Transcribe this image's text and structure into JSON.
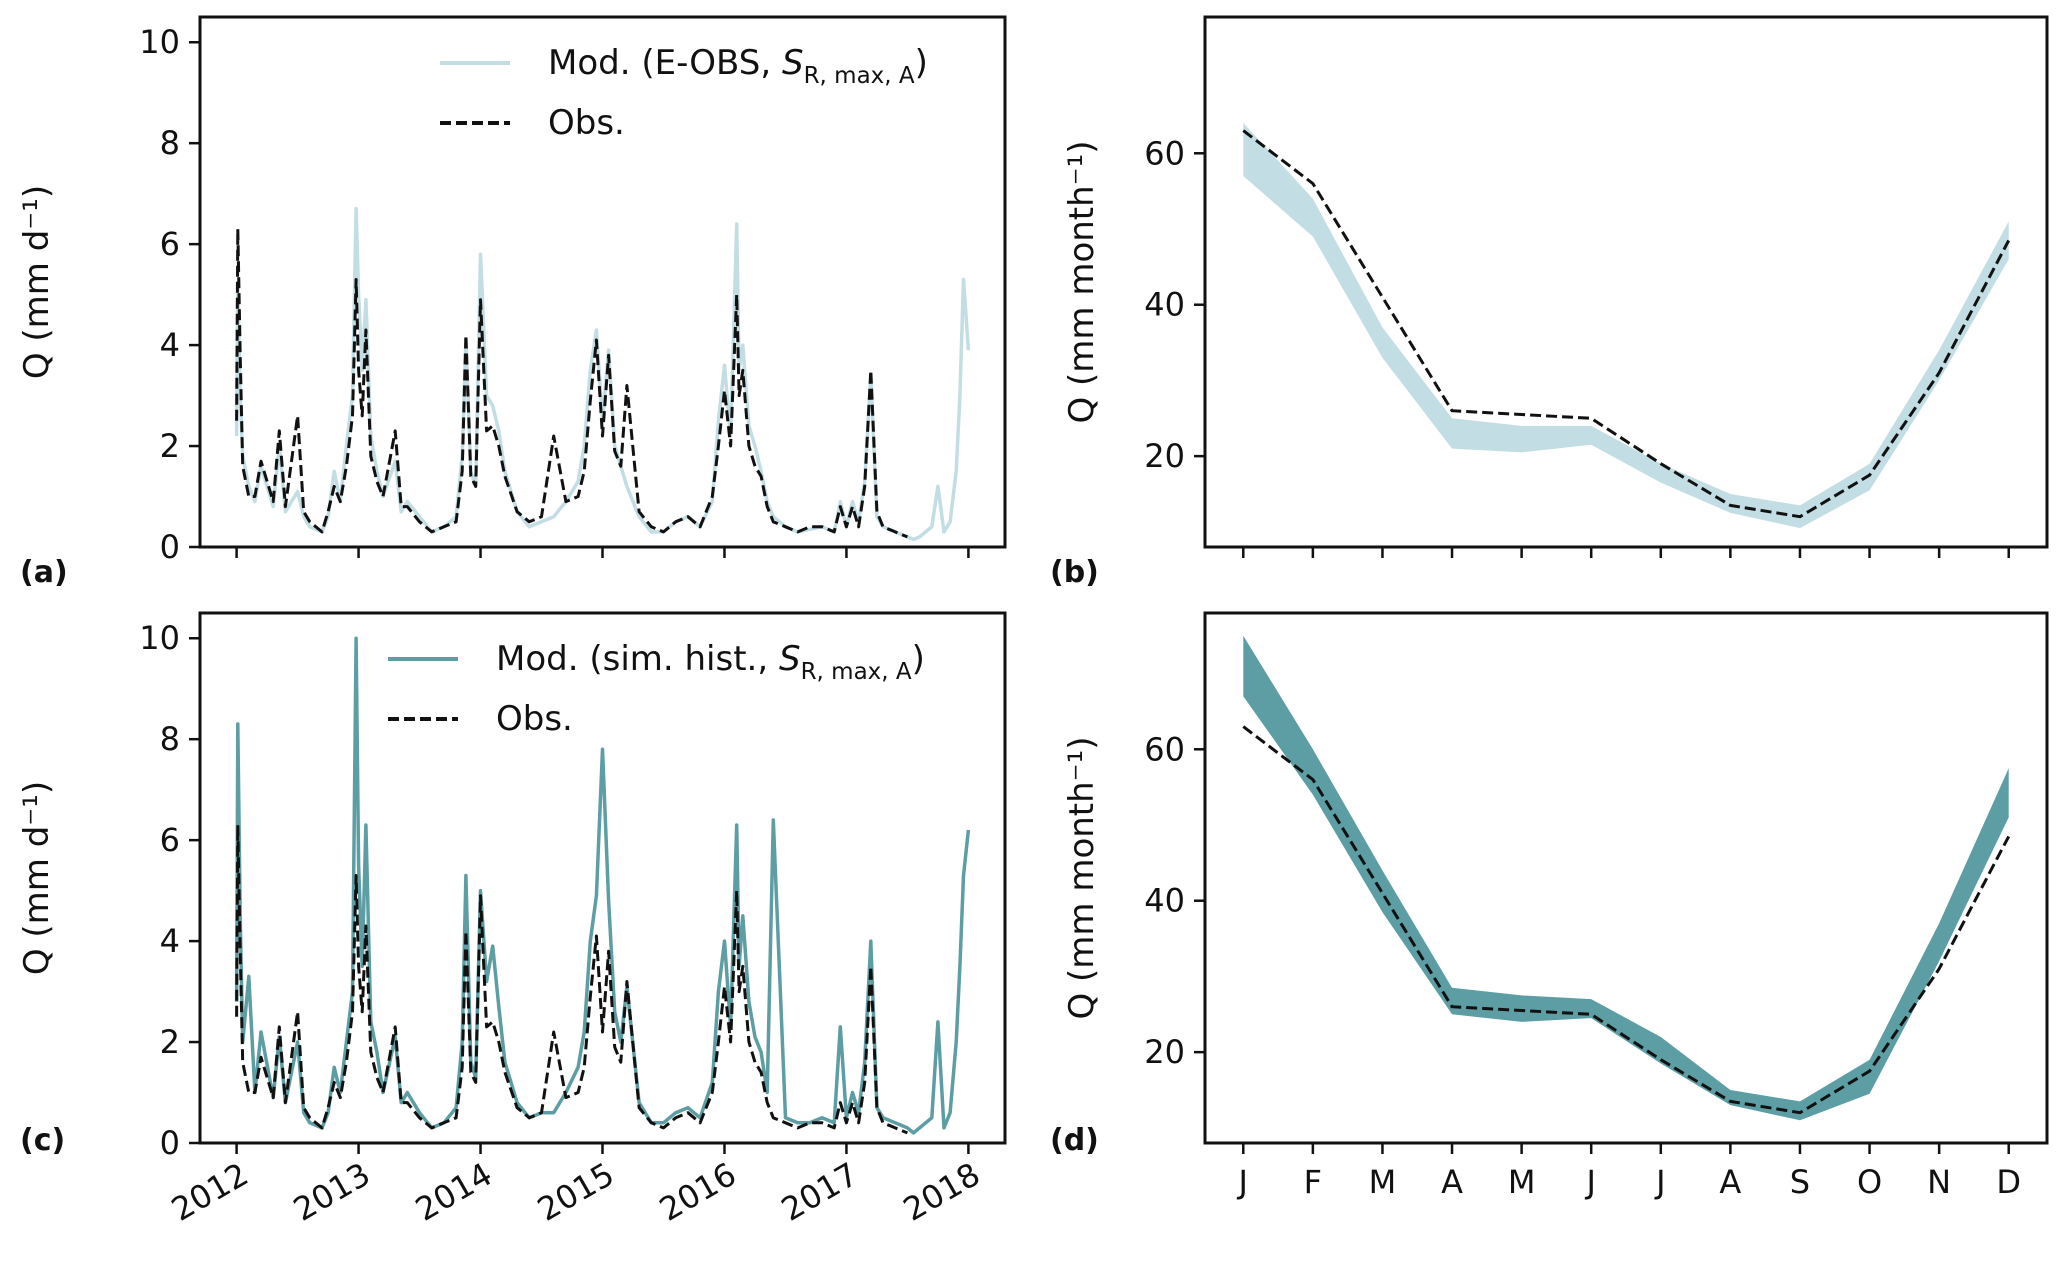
{
  "chart_data": [
    {
      "id": "a",
      "panel_label": "(a)",
      "type": "line",
      "ylabel": "Q (mm d⁻¹)",
      "ylim": [
        0,
        10.5
      ],
      "yticks": [
        "0",
        "2",
        "4",
        "6",
        "8",
        "10"
      ],
      "xlim": [
        2012,
        2018
      ],
      "xticks": [
        "2012",
        "2013",
        "2014",
        "2015",
        "2016",
        "2017",
        "2018"
      ],
      "show_xtick_labels": false,
      "legend": {
        "position": "top-right",
        "entries": [
          {
            "label_main": "Mod. (E-OBS, ",
            "label_italic": "S",
            "label_sub": "R, max, A",
            "label_end": ")",
            "style": "solid",
            "color": "#c2dde3"
          },
          {
            "label_main": "Obs.",
            "style": "dashed",
            "color": "#111111"
          }
        ]
      },
      "series": [
        {
          "name": "Mod. (E-OBS, S_R,max,A)",
          "color": "#c2dde3",
          "style": "solid",
          "x": [
            2012.0,
            2012.01,
            2012.03,
            2012.05,
            2012.1,
            2012.15,
            2012.2,
            2012.3,
            2012.35,
            2012.4,
            2012.5,
            2012.55,
            2012.6,
            2012.7,
            2012.75,
            2012.8,
            2012.85,
            2012.9,
            2012.95,
            2012.98,
            2013.0,
            2013.03,
            2013.06,
            2013.1,
            2013.15,
            2013.2,
            2013.3,
            2013.35,
            2013.4,
            2013.5,
            2013.6,
            2013.7,
            2013.8,
            2013.85,
            2013.88,
            2013.92,
            2013.96,
            2014.0,
            2014.05,
            2014.1,
            2014.15,
            2014.2,
            2014.3,
            2014.4,
            2014.5,
            2014.6,
            2014.7,
            2014.8,
            2014.85,
            2014.9,
            2014.95,
            2015.0,
            2015.05,
            2015.1,
            2015.15,
            2015.2,
            2015.3,
            2015.4,
            2015.5,
            2015.6,
            2015.7,
            2015.8,
            2015.9,
            2015.95,
            2016.0,
            2016.05,
            2016.1,
            2016.12,
            2016.15,
            2016.2,
            2016.25,
            2016.3,
            2016.35,
            2016.4,
            2016.5,
            2016.6,
            2016.7,
            2016.8,
            2016.9,
            2016.95,
            2017.0,
            2017.05,
            2017.1,
            2017.15,
            2017.2,
            2017.25,
            2017.3,
            2017.4,
            2017.5,
            2017.55,
            2017.6,
            2017.65,
            2017.7,
            2017.75,
            2017.8,
            2017.85,
            2017.9,
            2017.93,
            2017.96,
            2018.0
          ],
          "y": [
            2.2,
            5.2,
            3.0,
            1.8,
            1.2,
            0.9,
            1.6,
            0.8,
            2.0,
            0.7,
            1.1,
            0.6,
            0.4,
            0.3,
            0.6,
            1.5,
            0.9,
            2.0,
            3.0,
            6.7,
            5.0,
            3.5,
            4.9,
            2.2,
            1.5,
            1.0,
            1.7,
            0.7,
            0.9,
            0.6,
            0.3,
            0.4,
            0.6,
            1.8,
            4.1,
            1.5,
            1.2,
            5.8,
            3.0,
            2.8,
            2.3,
            1.5,
            0.7,
            0.4,
            0.5,
            0.6,
            0.9,
            1.3,
            2.0,
            3.5,
            4.3,
            2.5,
            3.9,
            2.0,
            1.6,
            1.2,
            0.6,
            0.3,
            0.3,
            0.5,
            0.6,
            0.4,
            0.9,
            2.5,
            3.6,
            2.2,
            6.4,
            3.5,
            4.0,
            2.4,
            2.0,
            1.5,
            0.9,
            0.6,
            0.4,
            0.3,
            0.35,
            0.4,
            0.3,
            0.9,
            0.4,
            0.9,
            0.5,
            1.3,
            3.4,
            0.6,
            0.4,
            0.3,
            0.2,
            0.15,
            0.2,
            0.3,
            0.4,
            1.2,
            0.3,
            0.5,
            1.5,
            3.0,
            5.3,
            3.9
          ]
        },
        {
          "name": "Obs.",
          "color": "#111111",
          "style": "dashed",
          "x": [
            2012.0,
            2012.01,
            2012.03,
            2012.05,
            2012.1,
            2012.15,
            2012.2,
            2012.3,
            2012.35,
            2012.4,
            2012.5,
            2012.55,
            2012.6,
            2012.7,
            2012.75,
            2012.8,
            2012.85,
            2012.9,
            2012.95,
            2012.98,
            2013.0,
            2013.03,
            2013.06,
            2013.1,
            2013.15,
            2013.2,
            2013.3,
            2013.35,
            2013.4,
            2013.5,
            2013.6,
            2013.7,
            2013.8,
            2013.85,
            2013.88,
            2013.92,
            2013.96,
            2014.0,
            2014.05,
            2014.1,
            2014.15,
            2014.2,
            2014.3,
            2014.4,
            2014.5,
            2014.6,
            2014.7,
            2014.8,
            2014.85,
            2014.9,
            2014.95,
            2015.0,
            2015.05,
            2015.1,
            2015.15,
            2015.2,
            2015.3,
            2015.4,
            2015.5,
            2015.6,
            2015.7,
            2015.8,
            2015.9,
            2015.95,
            2016.0,
            2016.05,
            2016.1,
            2016.12,
            2016.15,
            2016.2,
            2016.25,
            2016.3,
            2016.35,
            2016.4,
            2016.5,
            2016.6,
            2016.7,
            2016.8,
            2016.9,
            2016.95,
            2017.0,
            2017.05,
            2017.1,
            2017.15,
            2017.2,
            2017.25,
            2017.3,
            2017.4,
            2017.5
          ],
          "y": [
            2.5,
            6.3,
            3.8,
            1.6,
            1.0,
            1.0,
            1.7,
            0.9,
            2.3,
            0.8,
            2.6,
            0.7,
            0.5,
            0.3,
            0.7,
            1.2,
            0.9,
            1.6,
            2.6,
            5.3,
            3.5,
            2.6,
            4.3,
            1.8,
            1.3,
            1.0,
            2.3,
            0.8,
            0.8,
            0.5,
            0.3,
            0.4,
            0.5,
            1.5,
            4.2,
            1.4,
            1.2,
            4.9,
            2.3,
            2.4,
            2.0,
            1.4,
            0.7,
            0.5,
            0.6,
            2.2,
            0.9,
            1.0,
            1.5,
            2.9,
            4.1,
            2.2,
            3.8,
            1.9,
            1.6,
            3.2,
            0.7,
            0.4,
            0.3,
            0.5,
            0.6,
            0.4,
            1.0,
            2.0,
            3.1,
            2.0,
            5.0,
            3.0,
            3.5,
            2.0,
            1.6,
            1.4,
            0.8,
            0.5,
            0.4,
            0.3,
            0.4,
            0.4,
            0.3,
            0.8,
            0.4,
            0.8,
            0.4,
            1.2,
            3.5,
            0.7,
            0.4,
            0.3,
            0.2
          ]
        }
      ]
    },
    {
      "id": "b",
      "panel_label": "(b)",
      "type": "area",
      "ylabel": "Q (mm month⁻¹)",
      "ylim": [
        8,
        78
      ],
      "yticks": [
        "20",
        "40",
        "60"
      ],
      "categories": [
        "J",
        "F",
        "M",
        "A",
        "M",
        "J",
        "J",
        "A",
        "S",
        "O",
        "N",
        "D"
      ],
      "show_xtick_labels": false,
      "series": [
        {
          "name": "Mod. (E-OBS, S_R,max,A) range",
          "color": "#c2dde3",
          "style": "band",
          "lower": [
            57,
            49,
            33,
            21,
            20.5,
            21.5,
            16.5,
            12.5,
            10.5,
            15.5,
            30,
            46
          ],
          "upper": [
            64,
            54,
            37,
            25,
            24,
            24,
            19,
            15,
            13.5,
            19,
            34,
            51
          ]
        },
        {
          "name": "Obs.",
          "color": "#111111",
          "style": "dashed",
          "values": [
            63,
            56,
            41,
            26,
            25.5,
            25,
            19,
            13.5,
            12,
            17.5,
            31,
            48.5
          ]
        }
      ]
    },
    {
      "id": "c",
      "panel_label": "(c)",
      "type": "line",
      "ylabel": "Q (mm d⁻¹)",
      "ylim": [
        0,
        10.5
      ],
      "yticks": [
        "0",
        "2",
        "4",
        "6",
        "8",
        "10"
      ],
      "xlim": [
        2012,
        2018
      ],
      "xticks": [
        "2012",
        "2013",
        "2014",
        "2015",
        "2016",
        "2017",
        "2018"
      ],
      "show_xtick_labels": true,
      "legend": {
        "position": "top-right",
        "entries": [
          {
            "label_main": "Mod. (sim. hist., ",
            "label_italic": "S",
            "label_sub": "R, max, A",
            "label_end": ")",
            "style": "solid",
            "color": "#5d9ea4"
          },
          {
            "label_main": "Obs.",
            "style": "dashed",
            "color": "#111111"
          }
        ]
      },
      "series": [
        {
          "name": "Mod. (sim. hist., S_R,max,A)",
          "color": "#5d9ea4",
          "style": "solid",
          "x": [
            2012.0,
            2012.01,
            2012.03,
            2012.05,
            2012.1,
            2012.15,
            2012.2,
            2012.3,
            2012.35,
            2012.4,
            2012.5,
            2012.55,
            2012.6,
            2012.7,
            2012.75,
            2012.8,
            2012.85,
            2012.9,
            2012.95,
            2012.98,
            2013.0,
            2013.03,
            2013.06,
            2013.1,
            2013.15,
            2013.2,
            2013.3,
            2013.35,
            2013.4,
            2013.5,
            2013.6,
            2013.7,
            2013.8,
            2013.85,
            2013.88,
            2013.92,
            2013.96,
            2014.0,
            2014.05,
            2014.1,
            2014.15,
            2014.2,
            2014.3,
            2014.4,
            2014.5,
            2014.6,
            2014.7,
            2014.8,
            2014.85,
            2014.9,
            2014.95,
            2015.0,
            2015.05,
            2015.1,
            2015.15,
            2015.2,
            2015.3,
            2015.4,
            2015.5,
            2015.6,
            2015.7,
            2015.8,
            2015.9,
            2015.95,
            2016.0,
            2016.05,
            2016.1,
            2016.12,
            2016.15,
            2016.2,
            2016.25,
            2016.3,
            2016.35,
            2016.4,
            2016.5,
            2016.6,
            2016.7,
            2016.8,
            2016.9,
            2016.95,
            2017.0,
            2017.05,
            2017.1,
            2017.15,
            2017.2,
            2017.25,
            2017.3,
            2017.4,
            2017.5,
            2017.55,
            2017.6,
            2017.65,
            2017.7,
            2017.75,
            2017.8,
            2017.85,
            2017.9,
            2017.93,
            2017.96,
            2018.0
          ],
          "y": [
            2.8,
            8.3,
            4.5,
            2.0,
            3.3,
            1.0,
            2.2,
            0.9,
            2.1,
            0.8,
            2.0,
            0.6,
            0.4,
            0.3,
            0.6,
            1.5,
            1.0,
            2.0,
            3.0,
            10.0,
            5.5,
            3.5,
            6.3,
            2.4,
            1.8,
            1.0,
            2.1,
            0.8,
            1.0,
            0.6,
            0.3,
            0.4,
            0.7,
            2.0,
            5.3,
            1.6,
            1.3,
            5.0,
            3.2,
            3.9,
            2.7,
            1.6,
            0.8,
            0.5,
            0.6,
            0.6,
            1.0,
            1.5,
            2.2,
            4.0,
            4.9,
            7.8,
            4.8,
            2.6,
            2.0,
            3.1,
            0.8,
            0.4,
            0.4,
            0.6,
            0.7,
            0.5,
            1.2,
            3.0,
            4.0,
            2.3,
            6.3,
            3.5,
            4.5,
            2.8,
            2.1,
            1.8,
            1.0,
            6.4,
            0.5,
            0.4,
            0.4,
            0.5,
            0.4,
            2.3,
            0.5,
            1.0,
            0.6,
            1.6,
            4.0,
            0.7,
            0.5,
            0.4,
            0.3,
            0.2,
            0.3,
            0.4,
            0.5,
            2.4,
            0.3,
            0.6,
            2.0,
            3.5,
            5.3,
            6.2
          ]
        },
        {
          "name": "Obs.",
          "color": "#111111",
          "style": "dashed",
          "x": [
            2012.0,
            2012.01,
            2012.03,
            2012.05,
            2012.1,
            2012.15,
            2012.2,
            2012.3,
            2012.35,
            2012.4,
            2012.5,
            2012.55,
            2012.6,
            2012.7,
            2012.75,
            2012.8,
            2012.85,
            2012.9,
            2012.95,
            2012.98,
            2013.0,
            2013.03,
            2013.06,
            2013.1,
            2013.15,
            2013.2,
            2013.3,
            2013.35,
            2013.4,
            2013.5,
            2013.6,
            2013.7,
            2013.8,
            2013.85,
            2013.88,
            2013.92,
            2013.96,
            2014.0,
            2014.05,
            2014.1,
            2014.15,
            2014.2,
            2014.3,
            2014.4,
            2014.5,
            2014.6,
            2014.7,
            2014.8,
            2014.85,
            2014.9,
            2014.95,
            2015.0,
            2015.05,
            2015.1,
            2015.15,
            2015.2,
            2015.3,
            2015.4,
            2015.5,
            2015.6,
            2015.7,
            2015.8,
            2015.9,
            2015.95,
            2016.0,
            2016.05,
            2016.1,
            2016.12,
            2016.15,
            2016.2,
            2016.25,
            2016.3,
            2016.35,
            2016.4,
            2016.5,
            2016.6,
            2016.7,
            2016.8,
            2016.9,
            2016.95,
            2017.0,
            2017.05,
            2017.1,
            2017.15,
            2017.2,
            2017.25,
            2017.3,
            2017.4,
            2017.5
          ],
          "y": [
            2.5,
            6.3,
            3.8,
            1.6,
            1.0,
            1.0,
            1.7,
            0.9,
            2.3,
            0.8,
            2.6,
            0.7,
            0.5,
            0.3,
            0.7,
            1.2,
            0.9,
            1.6,
            2.6,
            5.3,
            3.5,
            2.6,
            4.3,
            1.8,
            1.3,
            1.0,
            2.3,
            0.8,
            0.8,
            0.5,
            0.3,
            0.4,
            0.5,
            1.5,
            4.2,
            1.4,
            1.2,
            4.9,
            2.3,
            2.4,
            2.0,
            1.4,
            0.7,
            0.5,
            0.6,
            2.2,
            0.9,
            1.0,
            1.5,
            2.9,
            4.1,
            2.2,
            3.8,
            1.9,
            1.6,
            3.2,
            0.7,
            0.4,
            0.3,
            0.5,
            0.6,
            0.4,
            1.0,
            2.0,
            3.1,
            2.0,
            5.0,
            3.0,
            3.5,
            2.0,
            1.6,
            1.4,
            0.8,
            0.5,
            0.4,
            0.3,
            0.4,
            0.4,
            0.3,
            0.8,
            0.4,
            0.8,
            0.4,
            1.2,
            3.5,
            0.7,
            0.4,
            0.3,
            0.2
          ]
        }
      ]
    },
    {
      "id": "d",
      "panel_label": "(d)",
      "type": "area",
      "ylabel": "Q (mm month⁻¹)",
      "ylim": [
        8,
        78
      ],
      "yticks": [
        "20",
        "40",
        "60"
      ],
      "categories": [
        "J",
        "F",
        "M",
        "A",
        "M",
        "J",
        "J",
        "A",
        "S",
        "O",
        "N",
        "D"
      ],
      "show_xtick_labels": true,
      "series": [
        {
          "name": "Mod. (sim. hist., S_R,max,A) range",
          "color": "#5d9ea4",
          "style": "band",
          "lower": [
            67,
            54,
            38.5,
            25,
            24,
            24.5,
            18.5,
            13,
            11,
            14.5,
            32,
            51
          ],
          "upper": [
            75,
            60,
            44,
            28.5,
            27.5,
            27,
            22,
            15,
            13.5,
            19,
            37,
            57.5
          ]
        },
        {
          "name": "Obs.",
          "color": "#111111",
          "style": "dashed",
          "values": [
            63,
            56,
            41,
            26,
            25.5,
            25,
            19,
            13.5,
            12,
            17.5,
            31,
            48.5
          ]
        }
      ]
    }
  ]
}
